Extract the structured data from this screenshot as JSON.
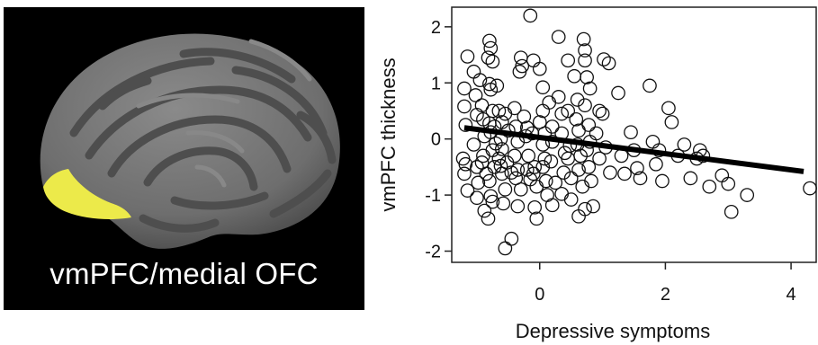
{
  "brain_panel": {
    "caption": "vmPFC/medial OFC",
    "background_color": "#000000",
    "highlight_color": "#ecea4a",
    "cortex_color": "#7a7a7a"
  },
  "chart_data": {
    "type": "scatter",
    "title": "",
    "xlabel": "Depressive symptoms",
    "ylabel": "vmPFC thickness",
    "xlim": [
      -1.4,
      4.4
    ],
    "ylim": [
      -2.2,
      2.35
    ],
    "xticks": [
      0,
      2,
      4
    ],
    "yticks": [
      -2,
      -1,
      0,
      1,
      2
    ],
    "grid": false,
    "marker": "open-circle",
    "regression_line": {
      "x": [
        -1.2,
        4.2
      ],
      "y": [
        0.2,
        -0.58
      ]
    },
    "points": [
      [
        -1.15,
        1.47
      ],
      [
        -1.2,
        0.9
      ],
      [
        -1.2,
        0.58
      ],
      [
        -1.18,
        0.25
      ],
      [
        -1.22,
        -0.35
      ],
      [
        -1.18,
        -0.45
      ],
      [
        -1.2,
        -0.62
      ],
      [
        -1.15,
        -0.92
      ],
      [
        -1.05,
        1.2
      ],
      [
        -1.02,
        0.78
      ],
      [
        -1.0,
        0.43
      ],
      [
        -1.05,
        -0.1
      ],
      [
        -1.0,
        -0.5
      ],
      [
        -0.98,
        -0.78
      ],
      [
        -1.0,
        -1.05
      ],
      [
        -0.95,
        1.05
      ],
      [
        -0.92,
        0.6
      ],
      [
        -0.9,
        0.35
      ],
      [
        -0.88,
        0.05
      ],
      [
        -0.9,
        -0.3
      ],
      [
        -0.92,
        -0.42
      ],
      [
        -0.85,
        -0.62
      ],
      [
        -0.88,
        -1.28
      ],
      [
        -0.8,
        1.75
      ],
      [
        -0.78,
        1.62
      ],
      [
        -0.82,
        1.45
      ],
      [
        -0.75,
        1.38
      ],
      [
        -0.8,
        0.98
      ],
      [
        -0.78,
        0.88
      ],
      [
        -0.75,
        0.5
      ],
      [
        -0.8,
        0.28
      ],
      [
        -0.72,
        0.22
      ],
      [
        -0.78,
        0.12
      ],
      [
        -0.7,
        -0.08
      ],
      [
        -0.75,
        -0.2
      ],
      [
        -0.72,
        -0.5
      ],
      [
        -0.8,
        -0.75
      ],
      [
        -0.78,
        -1.02
      ],
      [
        -0.75,
        -1.12
      ],
      [
        -0.82,
        -1.42
      ],
      [
        -0.68,
        0.95
      ],
      [
        -0.65,
        0.5
      ],
      [
        -0.6,
        0.3
      ],
      [
        -0.62,
        0.0
      ],
      [
        -0.6,
        -0.18
      ],
      [
        -0.65,
        -0.35
      ],
      [
        -0.62,
        -0.48
      ],
      [
        -0.6,
        -0.62
      ],
      [
        -0.55,
        -0.9
      ],
      [
        -0.58,
        -1.15
      ],
      [
        -0.55,
        0.45
      ],
      [
        -0.5,
        0.15
      ],
      [
        -0.52,
        -0.42
      ],
      [
        -0.45,
        -0.6
      ],
      [
        -0.55,
        -1.95
      ],
      [
        -0.45,
        -1.78
      ],
      [
        -0.4,
        0.55
      ],
      [
        -0.38,
        0.22
      ],
      [
        -0.35,
        -0.05
      ],
      [
        -0.4,
        -0.3
      ],
      [
        -0.35,
        -0.55
      ],
      [
        -0.38,
        -0.7
      ],
      [
        -0.3,
        -0.9
      ],
      [
        -0.35,
        -1.2
      ],
      [
        -0.3,
        1.45
      ],
      [
        -0.28,
        1.3
      ],
      [
        -0.32,
        1.2
      ],
      [
        -0.25,
        0.4
      ],
      [
        -0.2,
        0.2
      ],
      [
        -0.22,
        0.05
      ],
      [
        -0.18,
        -0.3
      ],
      [
        -0.2,
        -0.55
      ],
      [
        -0.15,
        -0.72
      ],
      [
        -0.15,
        2.2
      ],
      [
        -0.1,
        1.4
      ],
      [
        -0.12,
        0.1
      ],
      [
        -0.08,
        -0.5
      ],
      [
        -0.1,
        -0.62
      ],
      [
        -0.05,
        -0.85
      ],
      [
        -0.08,
        -1.22
      ],
      [
        -0.05,
        -1.42
      ],
      [
        0.0,
        1.25
      ],
      [
        0.05,
        0.92
      ],
      [
        0.05,
        0.5
      ],
      [
        0.0,
        0.3
      ],
      [
        0.08,
        0.1
      ],
      [
        0.05,
        -0.1
      ],
      [
        0.08,
        -0.35
      ],
      [
        0.05,
        -0.5
      ],
      [
        0.1,
        -0.75
      ],
      [
        0.12,
        -1.0
      ],
      [
        0.15,
        0.65
      ],
      [
        0.2,
        0.22
      ],
      [
        0.2,
        -0.05
      ],
      [
        0.18,
        -0.4
      ],
      [
        0.25,
        -0.78
      ],
      [
        0.2,
        -1.18
      ],
      [
        0.3,
        1.82
      ],
      [
        0.3,
        0.75
      ],
      [
        0.35,
        0.45
      ],
      [
        0.35,
        0.1
      ],
      [
        0.4,
        -0.25
      ],
      [
        0.38,
        -0.6
      ],
      [
        0.35,
        -0.98
      ],
      [
        0.45,
        1.4
      ],
      [
        0.45,
        0.5
      ],
      [
        0.48,
        -0.12
      ],
      [
        0.45,
        -0.35
      ],
      [
        0.5,
        -0.7
      ],
      [
        0.5,
        -1.08
      ],
      [
        0.55,
        1.12
      ],
      [
        0.6,
        0.7
      ],
      [
        0.58,
        0.35
      ],
      [
        0.62,
        0.15
      ],
      [
        0.6,
        -0.1
      ],
      [
        0.65,
        -0.3
      ],
      [
        0.62,
        -0.55
      ],
      [
        0.68,
        -0.85
      ],
      [
        0.62,
        -1.38
      ],
      [
        0.7,
        1.78
      ],
      [
        0.72,
        1.58
      ],
      [
        0.72,
        1.4
      ],
      [
        0.75,
        1.1
      ],
      [
        0.72,
        0.6
      ],
      [
        0.78,
        0.25
      ],
      [
        0.75,
        -0.2
      ],
      [
        0.78,
        -0.5
      ],
      [
        0.72,
        -1.25
      ],
      [
        0.8,
        0.9
      ],
      [
        0.8,
        -0.05
      ],
      [
        0.82,
        -0.75
      ],
      [
        0.85,
        -1.2
      ],
      [
        0.95,
        0.5
      ],
      [
        0.9,
        0.1
      ],
      [
        0.95,
        -0.35
      ],
      [
        1.0,
        0.45
      ],
      [
        1.02,
        1.42
      ],
      [
        1.1,
        1.35
      ],
      [
        1.05,
        -0.15
      ],
      [
        1.12,
        -0.6
      ],
      [
        1.25,
        0.82
      ],
      [
        1.3,
        -0.3
      ],
      [
        1.35,
        -0.62
      ],
      [
        1.45,
        0.12
      ],
      [
        1.5,
        -0.2
      ],
      [
        1.55,
        -0.52
      ],
      [
        1.6,
        -0.7
      ],
      [
        1.75,
        0.95
      ],
      [
        1.8,
        -0.05
      ],
      [
        1.85,
        -0.45
      ],
      [
        1.9,
        -0.2
      ],
      [
        1.95,
        -0.75
      ],
      [
        2.05,
        0.55
      ],
      [
        2.1,
        0.3
      ],
      [
        2.2,
        -0.3
      ],
      [
        2.3,
        -0.1
      ],
      [
        2.4,
        -0.7
      ],
      [
        2.5,
        -0.35
      ],
      [
        2.55,
        -0.2
      ],
      [
        2.6,
        -0.3
      ],
      [
        2.7,
        -0.85
      ],
      [
        2.9,
        -0.65
      ],
      [
        3.0,
        -0.8
      ],
      [
        3.05,
        -1.3
      ],
      [
        3.3,
        -1.0
      ],
      [
        4.3,
        -0.88
      ]
    ]
  }
}
